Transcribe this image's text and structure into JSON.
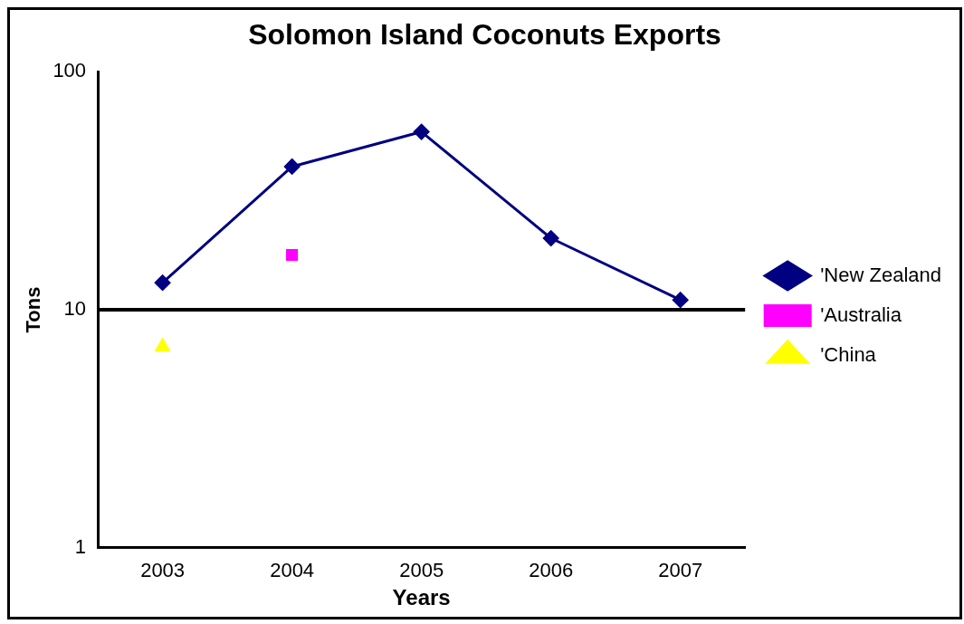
{
  "chart_data": {
    "type": "line",
    "title": "Solomon Island Coconuts Exports",
    "xlabel": "Years",
    "ylabel": "Tons",
    "categories": [
      "2003",
      "2004",
      "2005",
      "2006",
      "2007"
    ],
    "series": [
      {
        "name": "'New Zealand",
        "color": "#000080",
        "marker": "diamond",
        "values": [
          13,
          40,
          56,
          20,
          11
        ]
      },
      {
        "name": "'Australia",
        "color": "#ff00ff",
        "marker": "square",
        "values": [
          null,
          17,
          null,
          null,
          null
        ]
      },
      {
        "name": "'China",
        "color": "#ffff00",
        "marker": "triangle",
        "values": [
          7,
          null,
          null,
          null,
          null
        ]
      }
    ],
    "log": true,
    "ylim": [
      1,
      100
    ],
    "yticks": [
      1,
      10,
      100
    ],
    "grid": false,
    "legend": "right",
    "ref_lines": [
      {
        "axis": "y",
        "value": 10,
        "color": "#000000"
      }
    ]
  }
}
